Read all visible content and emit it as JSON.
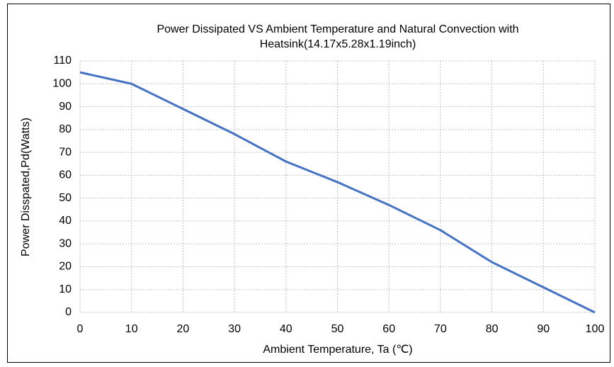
{
  "chart_data": {
    "type": "line",
    "title": [
      "Power Dissipated VS Ambient Temperature and Natural Convection with",
      "Heatsink(14.17x5.28x1.19inch)"
    ],
    "x_label": "Ambient Temperature, Ta (℃)",
    "y_label": "Power Disspated,Pd(Watts)",
    "x": [
      0,
      10,
      20,
      30,
      40,
      50,
      60,
      70,
      80,
      90,
      100
    ],
    "series": [
      {
        "name": "Power Dissipated",
        "color": "#4472c4",
        "values": [
          105,
          100,
          89,
          78,
          66,
          57,
          47,
          36,
          22,
          11,
          0
        ]
      }
    ],
    "xlim": [
      0,
      100
    ],
    "xticks": [
      0,
      10,
      20,
      30,
      40,
      50,
      60,
      70,
      80,
      90,
      100
    ],
    "ylim": [
      0,
      110
    ],
    "yticks": [
      0,
      10,
      20,
      30,
      40,
      50,
      60,
      70,
      80,
      90,
      100,
      110
    ],
    "grid": true
  }
}
